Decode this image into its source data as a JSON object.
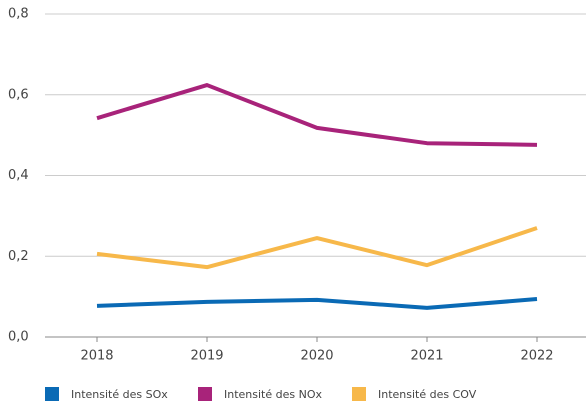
{
  "chart_data": {
    "type": "line",
    "categories": [
      "2018",
      "2019",
      "2020",
      "2021",
      "2022"
    ],
    "series": [
      {
        "name": "Intensité des SOx",
        "color": "#0a6ab5",
        "values": [
          0.077,
          0.087,
          0.092,
          0.072,
          0.094
        ]
      },
      {
        "name": "Intensité des NOx",
        "color": "#a8237a",
        "values": [
          0.542,
          0.624,
          0.518,
          0.48,
          0.476
        ]
      },
      {
        "name": "Intensité des COV",
        "color": "#f7b84a",
        "values": [
          0.206,
          0.173,
          0.245,
          0.178,
          0.27
        ]
      }
    ],
    "ylim": [
      0,
      0.8
    ],
    "yticks": [
      {
        "value": 0,
        "label": "0,0"
      },
      {
        "value": 0.2,
        "label": "0,2"
      },
      {
        "value": 0.4,
        "label": "0,4"
      },
      {
        "value": 0.6,
        "label": "0,6"
      },
      {
        "value": 0.8,
        "label": "0,8"
      }
    ],
    "grid": true,
    "legend": "bottom"
  }
}
